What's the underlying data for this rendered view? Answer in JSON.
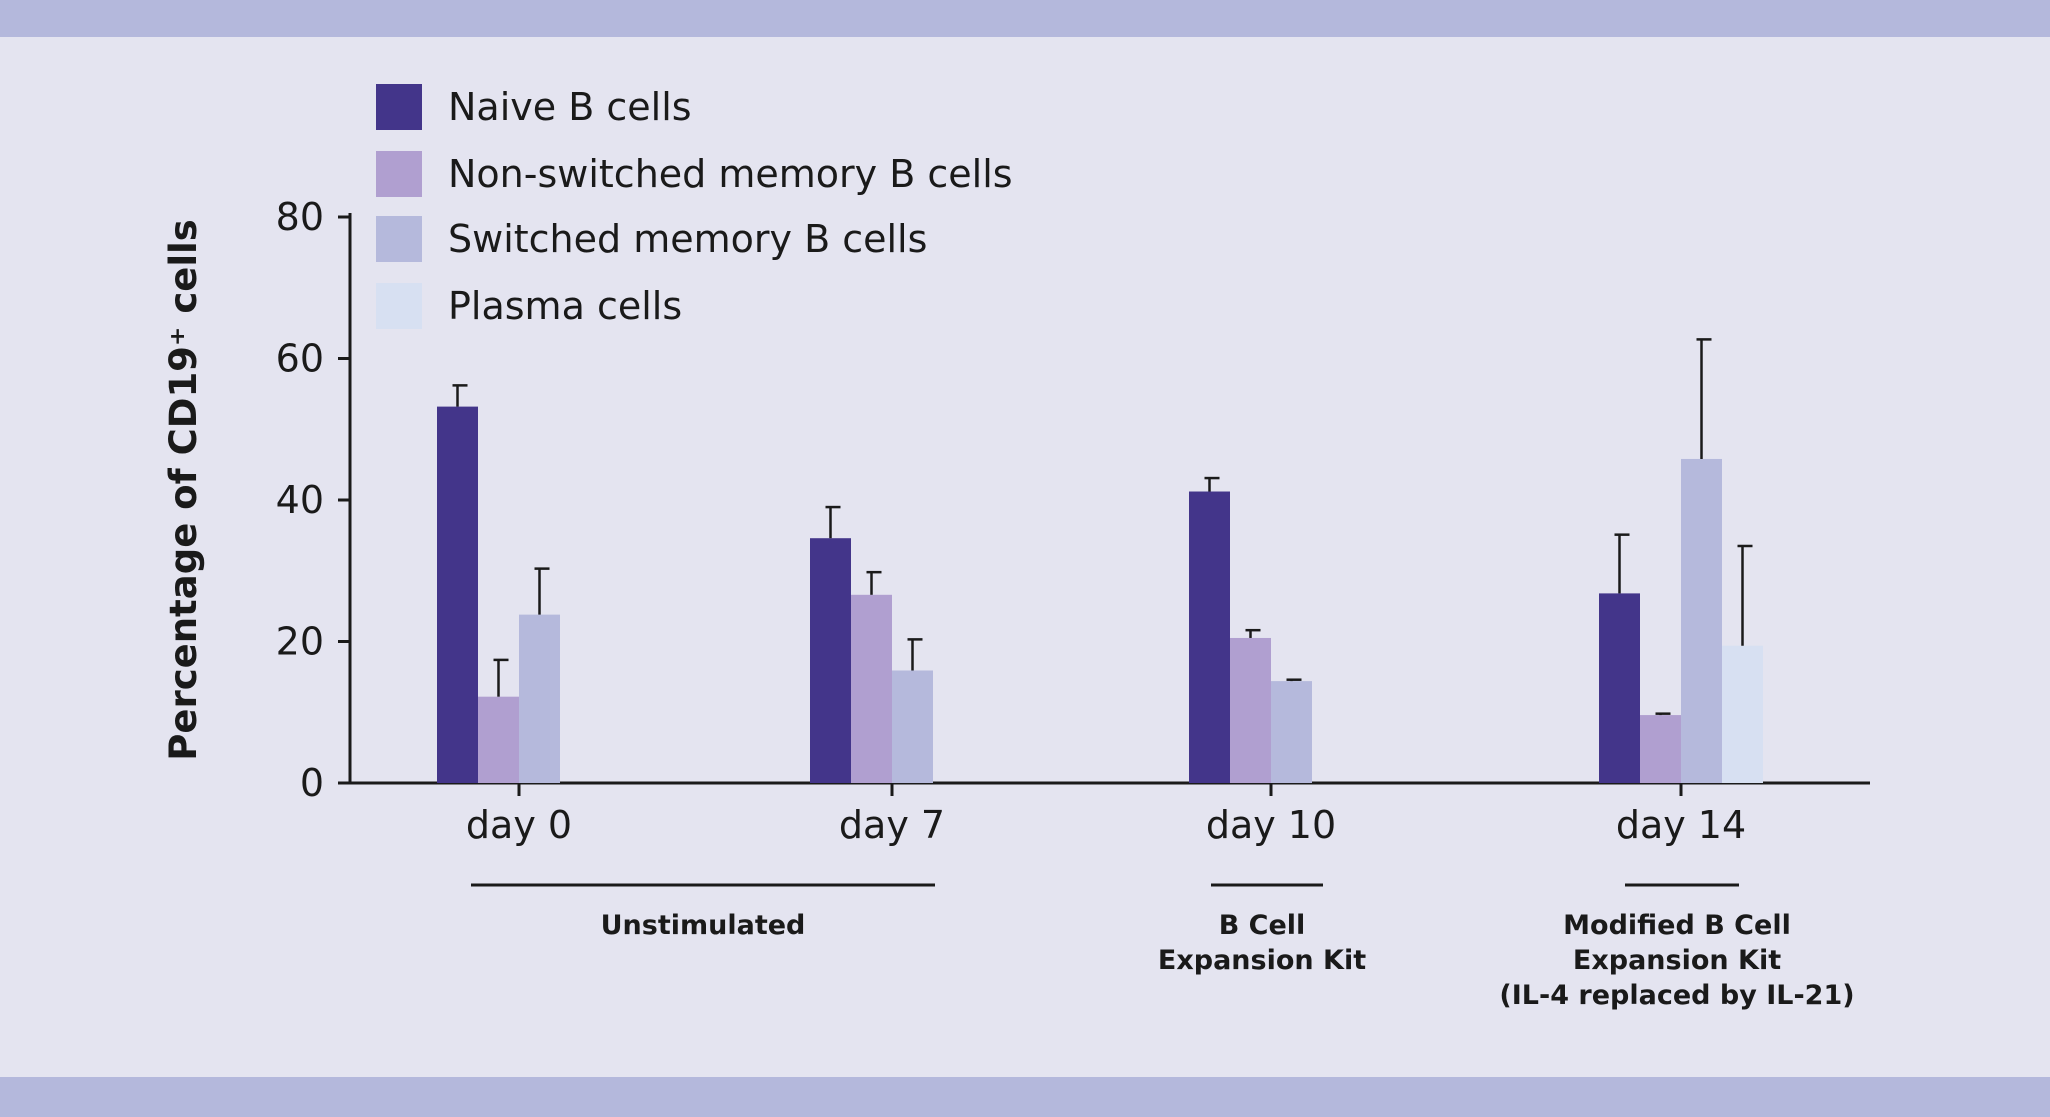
{
  "chart_data": {
    "type": "bar",
    "ylabel": "Percentage of CD19⁺ cells",
    "categories": [
      "day 0",
      "day 7",
      "day 10",
      "day 14"
    ],
    "series": [
      {
        "name": "Naive B cells",
        "color": "#43358a",
        "values": [
          53.2,
          34.6,
          41.2,
          26.8
        ],
        "errors": [
          3.0,
          4.4,
          1.9,
          8.3
        ]
      },
      {
        "name": "Non-switched memory B cells",
        "color": "#b09fd0",
        "values": [
          12.2,
          26.6,
          20.5,
          9.6
        ],
        "errors": [
          5.2,
          3.2,
          1.1,
          0.2
        ]
      },
      {
        "name": "Switched memory B cells",
        "color": "#b5b9dc",
        "values": [
          23.8,
          15.9,
          14.4,
          45.8
        ],
        "errors": [
          6.5,
          4.4,
          0.2,
          16.9
        ]
      },
      {
        "name": "Plasma cells",
        "color": "#d7e0f2",
        "values": [
          null,
          null,
          null,
          19.4
        ],
        "errors": [
          null,
          null,
          null,
          14.1
        ]
      }
    ],
    "ylim": [
      0,
      80
    ],
    "yticks": [
      0,
      20,
      40,
      60,
      80
    ],
    "annotations": [
      {
        "lines": [
          "Unstimulated"
        ]
      },
      {
        "lines": [
          "B Cell",
          "Expansion Kit"
        ]
      },
      {
        "lines": [
          "Modified B Cell",
          "Expansion Kit",
          "(IL-4 replaced by IL-21)"
        ]
      }
    ]
  }
}
